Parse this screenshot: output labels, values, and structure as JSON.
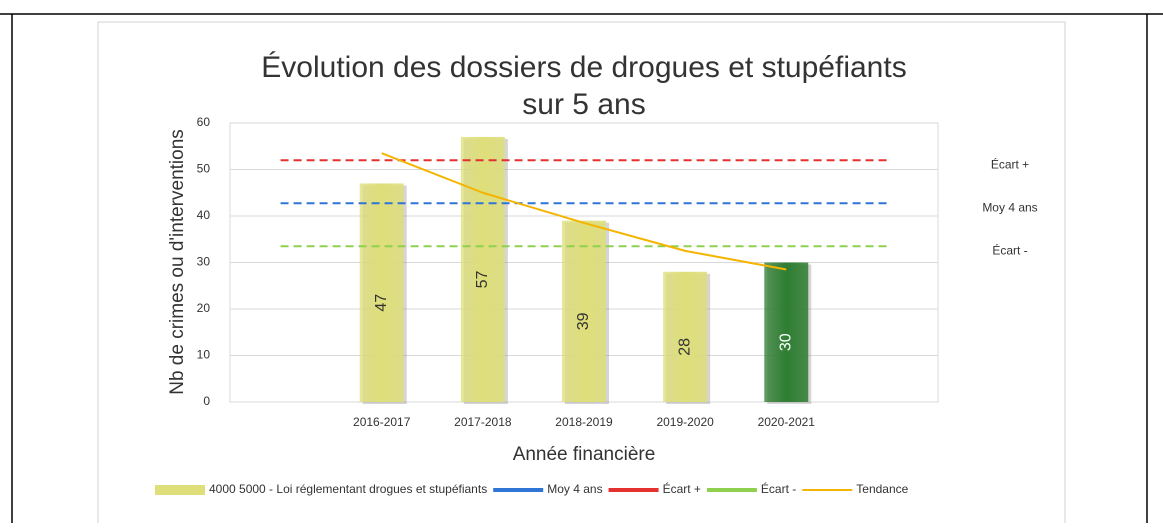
{
  "chart_data": {
    "type": "bar",
    "title": [
      "Évolution des dossiers de drogues et stupéfiants",
      "sur 5 ans"
    ],
    "x_label": "Année financière",
    "y_label": "Nb de crimes ou d'interventions",
    "categories": [
      null,
      "2016-2017",
      "2017-2018",
      "2018-2019",
      "2019-2020",
      "2020-2021",
      null
    ],
    "series": [
      {
        "name": "4000 5000 - Loi réglementant drogues et stupéfiants",
        "type": "bar",
        "color": "#dede7a",
        "colors": [
          null,
          "#dede7a",
          "#dede7a",
          "#dede7a",
          "#dede7a",
          "#2e7d32"
        ],
        "values": [
          null,
          47,
          57,
          39,
          28,
          30,
          null
        ]
      },
      {
        "name": "Moy 4 ans",
        "type": "dashed",
        "color": "#2e75d6",
        "values": [
          42.75,
          42.75,
          42.75,
          42.75,
          42.75,
          42.75,
          42.75
        ]
      },
      {
        "name": "Écart +",
        "type": "dashed",
        "color": "#e53030",
        "values": [
          52,
          52,
          52,
          52,
          52,
          52,
          52
        ]
      },
      {
        "name": "Écart -",
        "type": "dashed",
        "color": "#8fd14f",
        "values": [
          33.5,
          33.5,
          33.5,
          33.5,
          33.5,
          33.5,
          33.5
        ]
      },
      {
        "name": "Tendance",
        "type": "line",
        "color": "#f5b400",
        "values": [
          null,
          53.5,
          45,
          38.5,
          32.5,
          28.5,
          null
        ]
      }
    ],
    "ylim": [
      0,
      60
    ],
    "yticks": [
      0,
      10,
      20,
      30,
      40,
      50,
      60
    ],
    "grid": true,
    "legend": "bottom"
  }
}
